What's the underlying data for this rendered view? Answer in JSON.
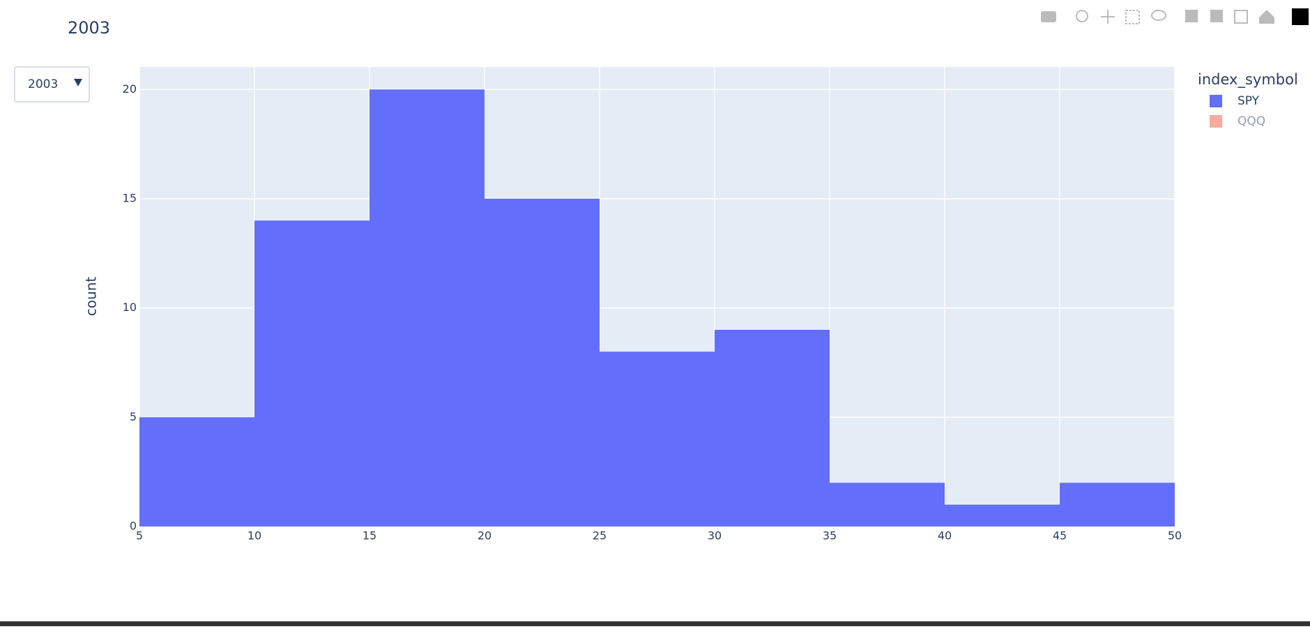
{
  "chart_data": {
    "type": "histogram",
    "title": "2003",
    "dropdown": "2003",
    "ylabel": "count",
    "legend_title": "index_symbol",
    "bins": [
      5,
      10,
      15,
      20,
      25,
      30,
      35,
      40,
      45,
      50
    ],
    "series": [
      {
        "name": "SPY",
        "color": "#636efa",
        "values": [
          5,
          14,
          20,
          15,
          8,
          9,
          2,
          1,
          2
        ]
      },
      {
        "name": "QQQ",
        "color": "#ef553b",
        "visible": "legendonly"
      }
    ],
    "xlim": [
      5,
      50
    ],
    "xticks": [
      5,
      10,
      15,
      20,
      25,
      30,
      35,
      40,
      45,
      50
    ],
    "ylim": [
      0,
      21.03
    ],
    "yticks": [
      0,
      5,
      10,
      15,
      20
    ],
    "grid": true,
    "legend_position": "right"
  }
}
